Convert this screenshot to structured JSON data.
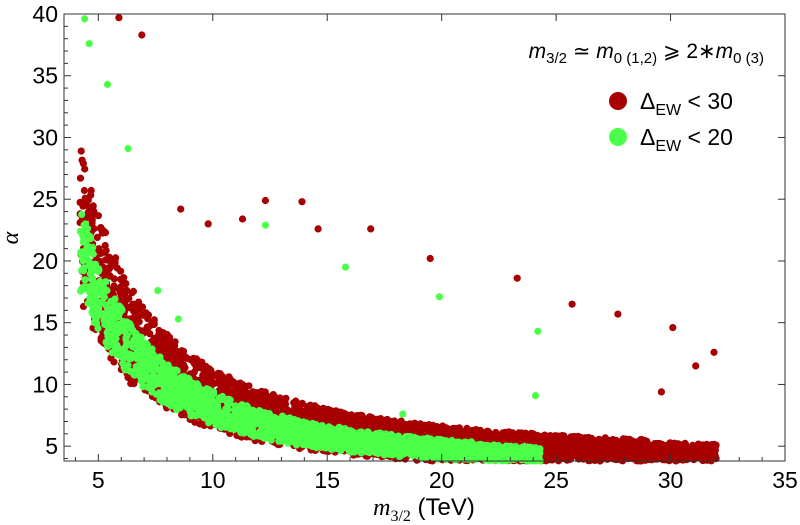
{
  "chart_data": {
    "type": "scatter",
    "title": "",
    "annotation": {
      "m": "m",
      "m_sub": "3/2",
      "approx": " ≃ ",
      "m0a_sub": "0 (1,2)",
      "geq": " ⩾ 2∗",
      "m0b_sub": "0 (3)"
    },
    "xlabel": {
      "symbol": "m",
      "sub": "3/2",
      "unit": " (TeV)"
    },
    "ylabel": "α",
    "xlim": [
      3.5,
      35
    ],
    "ylim": [
      3.8,
      40
    ],
    "xticks": [
      5,
      10,
      15,
      20,
      25,
      30,
      35
    ],
    "yticks": [
      5,
      10,
      15,
      20,
      25,
      30,
      35,
      40
    ],
    "grid": false,
    "legend_position": "top-right",
    "series": [
      {
        "name": "ΔEW < 30",
        "legend": {
          "delta": "Δ",
          "sub": "EW",
          "rest": " < 30"
        },
        "color": "#a80000",
        "model": {
          "x_range": [
            4.2,
            32
          ],
          "a": 3,
          "b": 157,
          "c": 1.45,
          "spread_lo": 0.74,
          "spread_hi": 1.32,
          "n": 3400
        },
        "stragglers": [
          [
            8.6,
            24.2
          ],
          [
            9.8,
            23.0
          ],
          [
            11.3,
            23.4
          ],
          [
            12.3,
            24.9
          ],
          [
            13.9,
            24.8
          ],
          [
            14.6,
            22.6
          ],
          [
            16.9,
            22.6
          ],
          [
            19.5,
            20.2
          ],
          [
            23.3,
            18.6
          ],
          [
            25.7,
            16.5
          ],
          [
            27.7,
            15.7
          ],
          [
            30.1,
            14.6
          ],
          [
            31.9,
            12.6
          ],
          [
            31.1,
            11.5
          ],
          [
            29.6,
            9.4
          ],
          [
            6.9,
            38.3
          ],
          [
            5.9,
            39.7
          ]
        ]
      },
      {
        "name": "ΔEW < 20",
        "legend": {
          "delta": "Δ",
          "sub": "EW",
          "rest": " < 20"
        },
        "color": "#4cff48",
        "model": {
          "x_range": [
            4.2,
            24.3
          ],
          "a": 3,
          "b": 157,
          "c": 1.45,
          "spread_lo": 0.78,
          "spread_hi": 1.1,
          "n": 1900
        },
        "stragglers": [
          [
            4.4,
            39.6
          ],
          [
            4.6,
            37.6
          ],
          [
            5.4,
            34.3
          ],
          [
            6.3,
            29.1
          ],
          [
            7.6,
            17.6
          ],
          [
            8.5,
            15.3
          ],
          [
            12.3,
            22.9
          ],
          [
            15.8,
            19.5
          ],
          [
            18.3,
            7.6
          ],
          [
            19.9,
            17.1
          ],
          [
            24.1,
            9.1
          ],
          [
            24.2,
            14.3
          ]
        ]
      }
    ]
  }
}
